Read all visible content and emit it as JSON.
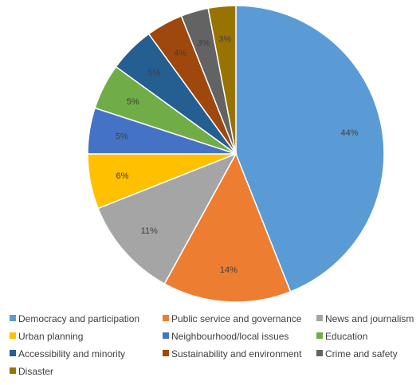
{
  "chart_data": {
    "type": "pie",
    "title": "",
    "categories": [
      "Democracy and participation",
      "Public service and governance",
      "News and journalism",
      "Urban planning",
      "Neighbourhood/local issues",
      "Education",
      "Accessibility and minority",
      "Sustainability and environment",
      "Crime and safety",
      "Disaster"
    ],
    "values": [
      44,
      14,
      11,
      6,
      5,
      5,
      5,
      4,
      3,
      3
    ],
    "data_labels": [
      "44%",
      "14%",
      "11%",
      "6%",
      "5%",
      "5%",
      "5%",
      "4%",
      "3%",
      "3%"
    ],
    "colors": [
      "#5B9BD5",
      "#ED7D31",
      "#A5A5A5",
      "#FFC000",
      "#4472C4",
      "#70AD47",
      "#255E91",
      "#9E480E",
      "#636363",
      "#997300"
    ],
    "legend_position": "bottom"
  }
}
